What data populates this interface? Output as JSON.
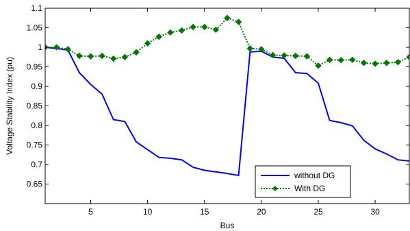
{
  "chart_data": {
    "type": "line",
    "xlabel": "Bus",
    "ylabel": "Voltage Stability Index (pu)",
    "xlim": [
      1,
      33
    ],
    "ylim": [
      0.6,
      1.1
    ],
    "xticks": [
      5,
      10,
      15,
      20,
      25,
      30
    ],
    "yticks": [
      0.65,
      0.7,
      0.75,
      0.8,
      0.85,
      0.9,
      0.95,
      1,
      1.05,
      1.1
    ],
    "grid": false,
    "legend_position": "bottom-right",
    "series": [
      {
        "name": "without DG",
        "color": "#0000ff",
        "style": "solid",
        "marker": "none",
        "x": [
          1,
          2,
          3,
          4,
          5,
          6,
          7,
          8,
          9,
          10,
          11,
          12,
          13,
          14,
          15,
          16,
          17,
          18,
          19,
          20,
          21,
          22,
          23,
          24,
          25,
          26,
          27,
          28,
          29,
          30,
          31,
          32,
          33
        ],
        "values": [
          1.0,
          0.997,
          0.993,
          0.935,
          0.905,
          0.88,
          0.815,
          0.81,
          0.758,
          0.738,
          0.718,
          0.716,
          0.712,
          0.693,
          0.685,
          0.681,
          0.677,
          0.672,
          0.988,
          0.99,
          0.975,
          0.972,
          0.935,
          0.933,
          0.908,
          0.813,
          0.807,
          0.799,
          0.762,
          0.74,
          0.727,
          0.712,
          0.709
        ]
      },
      {
        "name": "With DG",
        "color": "#007700",
        "style": "dotted",
        "marker": "diamond",
        "x": [
          1,
          2,
          3,
          4,
          5,
          6,
          7,
          8,
          9,
          10,
          11,
          12,
          13,
          14,
          15,
          16,
          17,
          18,
          19,
          20,
          21,
          22,
          23,
          24,
          25,
          26,
          27,
          28,
          29,
          30,
          31,
          32,
          33
        ],
        "values": [
          1.0,
          1.0,
          0.995,
          0.978,
          0.977,
          0.978,
          0.971,
          0.975,
          0.987,
          1.01,
          1.027,
          1.038,
          1.043,
          1.052,
          1.052,
          1.045,
          1.075,
          1.065,
          0.997,
          0.995,
          0.98,
          0.979,
          0.978,
          0.977,
          0.953,
          0.968,
          0.967,
          0.968,
          0.96,
          0.958,
          0.96,
          0.962,
          0.975
        ]
      }
    ]
  }
}
